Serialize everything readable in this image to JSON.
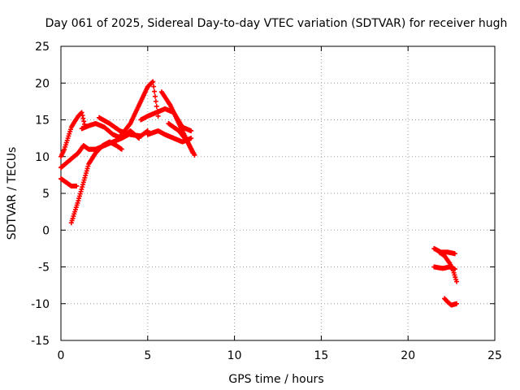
{
  "chart_data": {
    "type": "scatter",
    "title": "Day 061 of 2025, Sidereal Day-to-day VTEC variation (SDTVAR) for receiver hugh",
    "xlabel": "GPS time / hours",
    "ylabel": "SDTVAR / TECUs",
    "xlim": [
      0,
      25
    ],
    "ylim": [
      -15,
      25
    ],
    "xticks": [
      0,
      5,
      10,
      15,
      20,
      25
    ],
    "yticks": [
      -15,
      -10,
      -5,
      0,
      5,
      10,
      15,
      20,
      25
    ],
    "grid": true,
    "color": "#ff0000",
    "marker": "plus",
    "series": [
      {
        "x": [
          0.0,
          0.2,
          0.4,
          0.6,
          0.8,
          1.0,
          1.2,
          1.4
        ],
        "y": [
          10.0,
          11.0,
          12.5,
          14.0,
          14.8,
          15.5,
          16.0,
          14.0
        ]
      },
      {
        "x": [
          0.0,
          0.5,
          1.0,
          1.3,
          1.6,
          2.0,
          2.5,
          3.0,
          3.5,
          3.9
        ],
        "y": [
          8.5,
          9.5,
          10.5,
          11.5,
          11.0,
          11.0,
          11.5,
          12.0,
          12.5,
          13.0
        ]
      },
      {
        "x": [
          0.0,
          0.3,
          0.6,
          0.9
        ],
        "y": [
          7.0,
          6.5,
          6.0,
          6.0
        ]
      },
      {
        "x": [
          0.6,
          0.8,
          1.0,
          1.3,
          1.6,
          2.0,
          2.4,
          2.8,
          3.2,
          3.5
        ],
        "y": [
          1.0,
          2.5,
          4.0,
          6.5,
          9.0,
          10.5,
          11.5,
          12.0,
          11.5,
          11.0
        ]
      },
      {
        "x": [
          1.2,
          1.6,
          2.0,
          2.5,
          3.0,
          3.5,
          4.0,
          4.5
        ],
        "y": [
          13.8,
          14.2,
          14.5,
          14.0,
          13.0,
          12.5,
          13.5,
          12.5
        ]
      },
      {
        "x": [
          2.2,
          2.8,
          3.4,
          4.0,
          4.6,
          5.0
        ],
        "y": [
          15.3,
          14.5,
          13.5,
          13.0,
          12.8,
          13.5
        ]
      },
      {
        "x": [
          3.5,
          4.0,
          4.5,
          5.0,
          5.3,
          5.6
        ],
        "y": [
          13.0,
          14.5,
          17.0,
          19.5,
          20.2,
          15.5
        ]
      },
      {
        "x": [
          4.6,
          5.0,
          5.5,
          6.0,
          6.5,
          7.0,
          7.5
        ],
        "y": [
          15.0,
          15.5,
          16.0,
          16.5,
          16.0,
          14.0,
          13.5
        ]
      },
      {
        "x": [
          5.0,
          5.6,
          6.0,
          6.5,
          7.0,
          7.5
        ],
        "y": [
          13.0,
          13.5,
          13.0,
          12.5,
          12.0,
          12.5
        ]
      },
      {
        "x": [
          5.8,
          6.3,
          6.8,
          7.2,
          7.6
        ],
        "y": [
          18.8,
          17.0,
          14.5,
          12.5,
          10.5
        ]
      },
      {
        "x": [
          6.2,
          6.8,
          7.3,
          7.7
        ],
        "y": [
          14.5,
          13.5,
          12.0,
          10.2
        ]
      },
      {
        "x": [
          21.5,
          21.9,
          22.3,
          22.7
        ],
        "y": [
          -2.5,
          -3.0,
          -3.0,
          -3.2
        ]
      },
      {
        "x": [
          21.5,
          22.0,
          22.4,
          22.7
        ],
        "y": [
          -5.0,
          -5.2,
          -5.0,
          -5.3
        ]
      },
      {
        "x": [
          21.8,
          22.1,
          22.4,
          22.6,
          22.8
        ],
        "y": [
          -3.0,
          -3.5,
          -4.5,
          -5.5,
          -7.0
        ]
      },
      {
        "x": [
          22.1,
          22.3,
          22.5,
          22.8
        ],
        "y": [
          -9.3,
          -9.8,
          -10.2,
          -10.0
        ]
      }
    ]
  }
}
